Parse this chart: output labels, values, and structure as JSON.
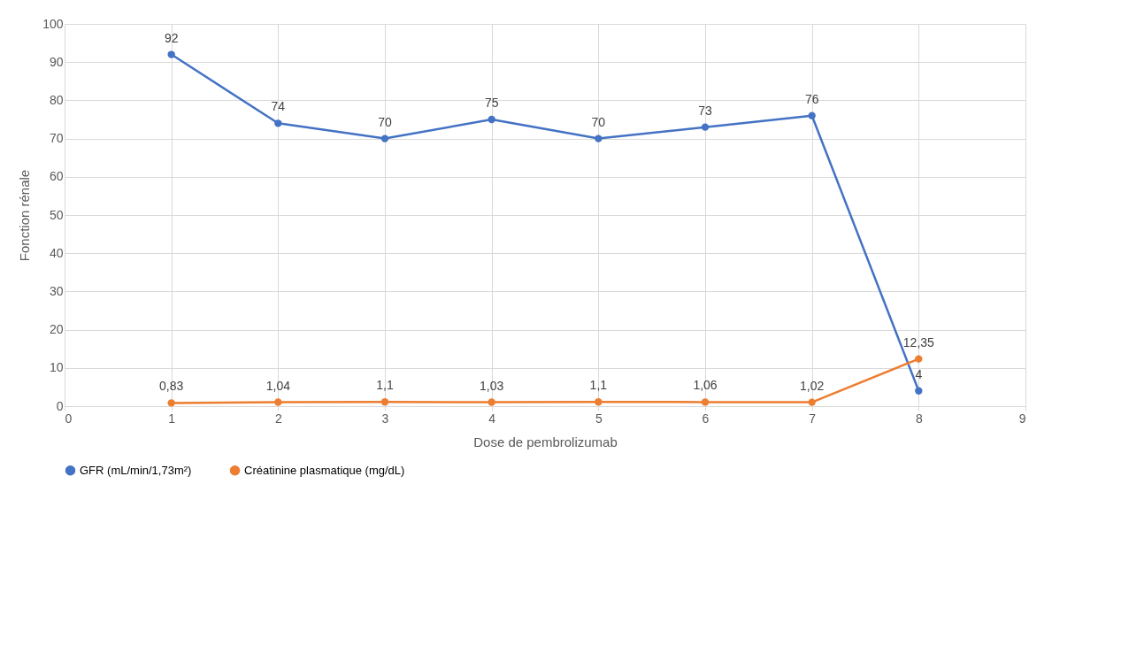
{
  "chart_data": {
    "type": "line",
    "xlabel": "Dose de pembrolizumab",
    "ylabel": "Fonction rénale",
    "x": [
      1,
      2,
      3,
      4,
      5,
      6,
      7,
      8
    ],
    "series": [
      {
        "name": "GFR (mL/min/1,73m²)",
        "color": "#4472c4",
        "values": [
          92,
          74,
          70,
          75,
          70,
          73,
          76,
          4
        ],
        "value_labels": [
          "92",
          "74",
          "70",
          "75",
          "70",
          "73",
          "76",
          "4"
        ]
      },
      {
        "name": "Créatinine plasmatique (mg/dL)",
        "color": "#ed7d31",
        "values": [
          0.83,
          1.04,
          1.1,
          1.03,
          1.1,
          1.06,
          1.02,
          12.35
        ],
        "value_labels": [
          "0,83",
          "1,04",
          "1,1",
          "1,03",
          "1,1",
          "1,06",
          "1,02",
          "12,35"
        ]
      }
    ],
    "xlim": [
      0,
      9
    ],
    "xticks": [
      0,
      1,
      2,
      3,
      4,
      5,
      6,
      7,
      8,
      9
    ],
    "ylim": [
      0,
      100
    ],
    "yticks": [
      0,
      10,
      20,
      30,
      40,
      50,
      60,
      70,
      80,
      90,
      100
    ],
    "grid": true,
    "legend": "bottom",
    "marker": "circle",
    "line_style": "solid"
  }
}
